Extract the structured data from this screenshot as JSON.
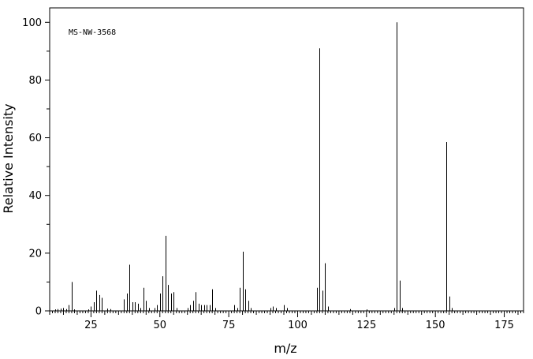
{
  "chart_data": {
    "type": "bar",
    "annotation": "MS-NW-3568",
    "xlabel": "m/z",
    "ylabel": "Relative Intensity",
    "xlim": [
      10,
      182
    ],
    "ylim": [
      0,
      105
    ],
    "x_ticks": [
      25,
      50,
      75,
      100,
      125,
      150,
      175
    ],
    "y_ticks": [
      0,
      20,
      40,
      60,
      80,
      100
    ],
    "grid": false,
    "peaks": [
      {
        "mz": 12,
        "i": 0.5
      },
      {
        "mz": 13,
        "i": 0.6
      },
      {
        "mz": 14,
        "i": 0.8
      },
      {
        "mz": 15,
        "i": 1.0
      },
      {
        "mz": 16,
        "i": 0.6
      },
      {
        "mz": 17,
        "i": 2.0
      },
      {
        "mz": 18,
        "i": 10.0
      },
      {
        "mz": 19,
        "i": 0.5
      },
      {
        "mz": 24,
        "i": 0.5
      },
      {
        "mz": 25,
        "i": 1.5
      },
      {
        "mz": 26,
        "i": 3.0
      },
      {
        "mz": 27,
        "i": 7.0
      },
      {
        "mz": 28,
        "i": 5.5
      },
      {
        "mz": 29,
        "i": 4.5
      },
      {
        "mz": 31,
        "i": 0.8
      },
      {
        "mz": 32,
        "i": 0.6
      },
      {
        "mz": 37,
        "i": 4.0
      },
      {
        "mz": 38,
        "i": 6.0
      },
      {
        "mz": 39,
        "i": 16.0
      },
      {
        "mz": 40,
        "i": 3.0
      },
      {
        "mz": 41,
        "i": 3.0
      },
      {
        "mz": 42,
        "i": 2.5
      },
      {
        "mz": 43,
        "i": 1.0
      },
      {
        "mz": 44,
        "i": 8.0
      },
      {
        "mz": 45,
        "i": 3.5
      },
      {
        "mz": 46,
        "i": 1.0
      },
      {
        "mz": 48,
        "i": 1.0
      },
      {
        "mz": 49,
        "i": 2.0
      },
      {
        "mz": 50,
        "i": 6.0
      },
      {
        "mz": 51,
        "i": 12.0
      },
      {
        "mz": 52,
        "i": 26.0
      },
      {
        "mz": 53,
        "i": 9.0
      },
      {
        "mz": 54,
        "i": 6.0
      },
      {
        "mz": 55,
        "i": 6.5
      },
      {
        "mz": 56,
        "i": 1.0
      },
      {
        "mz": 60,
        "i": 1.0
      },
      {
        "mz": 61,
        "i": 2.0
      },
      {
        "mz": 62,
        "i": 3.5
      },
      {
        "mz": 63,
        "i": 6.5
      },
      {
        "mz": 64,
        "i": 2.5
      },
      {
        "mz": 65,
        "i": 2.0
      },
      {
        "mz": 66,
        "i": 2.0
      },
      {
        "mz": 67,
        "i": 2.0
      },
      {
        "mz": 68,
        "i": 2.0
      },
      {
        "mz": 69,
        "i": 7.5
      },
      {
        "mz": 70,
        "i": 1.0
      },
      {
        "mz": 77,
        "i": 2.0
      },
      {
        "mz": 78,
        "i": 1.0
      },
      {
        "mz": 79,
        "i": 8.0
      },
      {
        "mz": 80,
        "i": 20.5
      },
      {
        "mz": 81,
        "i": 7.5
      },
      {
        "mz": 82,
        "i": 3.5
      },
      {
        "mz": 83,
        "i": 1.0
      },
      {
        "mz": 90,
        "i": 1.0
      },
      {
        "mz": 91,
        "i": 1.5
      },
      {
        "mz": 92,
        "i": 1.0
      },
      {
        "mz": 95,
        "i": 2.0
      },
      {
        "mz": 96,
        "i": 1.0
      },
      {
        "mz": 107,
        "i": 8.0
      },
      {
        "mz": 108,
        "i": 91.0
      },
      {
        "mz": 109,
        "i": 7.0
      },
      {
        "mz": 110,
        "i": 16.5
      },
      {
        "mz": 111,
        "i": 1.5
      },
      {
        "mz": 119,
        "i": 0.6
      },
      {
        "mz": 125,
        "i": 0.5
      },
      {
        "mz": 135,
        "i": 1.0
      },
      {
        "mz": 136,
        "i": 100.0
      },
      {
        "mz": 137,
        "i": 10.5
      },
      {
        "mz": 138,
        "i": 1.0
      },
      {
        "mz": 154,
        "i": 58.5
      },
      {
        "mz": 155,
        "i": 5.0
      },
      {
        "mz": 156,
        "i": 1.0
      }
    ]
  }
}
